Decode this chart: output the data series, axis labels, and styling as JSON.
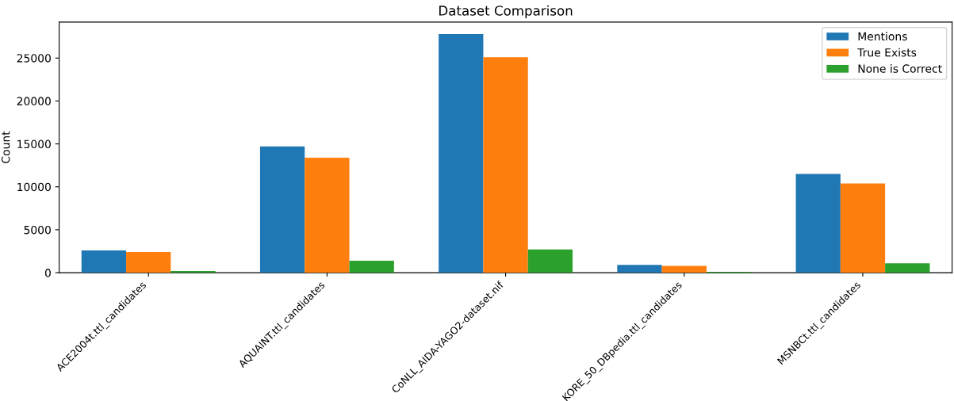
{
  "chart_data": {
    "type": "bar",
    "title": "Dataset Comparison",
    "ylabel": "Count",
    "categories": [
      "ACE2004t.ttl_candidates",
      "AQUAINT.ttl_candidates",
      "CoNLL_AIDA-YAGO2-dataset.nif",
      "KORE_50_DBpedia.ttl_candidates",
      "MSNBCt.ttl_candidates"
    ],
    "series": [
      {
        "name": "Mentions",
        "color": "#1f77b4",
        "values": [
          2600,
          14700,
          27800,
          900,
          11500
        ]
      },
      {
        "name": "True Exists",
        "color": "#ff7f0e",
        "values": [
          2400,
          13400,
          25100,
          800,
          10400
        ]
      },
      {
        "name": "None is Correct",
        "color": "#2ca02c",
        "values": [
          200,
          1400,
          2700,
          100,
          1100
        ]
      }
    ],
    "ylim": [
      0,
      29190
    ],
    "yticks": [
      0,
      5000,
      10000,
      15000,
      20000,
      25000
    ],
    "legend": "top right",
    "grid": false
  }
}
